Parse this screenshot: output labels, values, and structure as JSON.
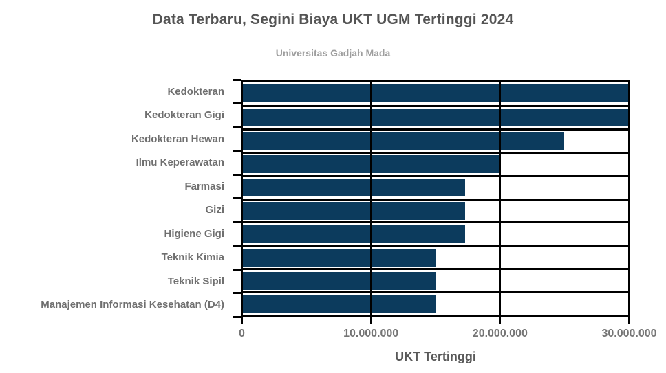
{
  "chart_data": {
    "type": "bar",
    "orientation": "horizontal",
    "title": "Data Terbaru, Segini Biaya UKT UGM Tertinggi 2024",
    "subtitle": "Universitas Gadjah Mada",
    "xlabel": "UKT Tertinggi",
    "ylabel": "",
    "categories": [
      "Kedokteran",
      "Kedokteran Gigi",
      "Kedokteran Hewan",
      "Ilmu Keperawatan",
      "Farmasi",
      "Gizi",
      "Higiene Gigi",
      "Teknik Kimia",
      "Teknik Sipil",
      "Manajemen Informasi Kesehatan (D4)"
    ],
    "values": [
      30000000,
      30000000,
      25000000,
      20000000,
      17300000,
      17300000,
      17300000,
      15000000,
      15000000,
      15000000
    ],
    "xlim": [
      0,
      30000000
    ],
    "x_ticks": [
      0,
      10000000,
      20000000,
      30000000
    ],
    "x_tick_labels": [
      "0",
      "10.000.000",
      "20.000.000",
      "30.000.000"
    ],
    "grid": true,
    "legend": false,
    "colors": {
      "bar": "#0c3b5d",
      "grid": "#000000",
      "title": "#545454",
      "subtitle": "#9e9e9e",
      "category_labels": "#6f6f6f",
      "tick_labels": "#757575",
      "axis_title": "#595959",
      "background": "#ffffff"
    }
  }
}
